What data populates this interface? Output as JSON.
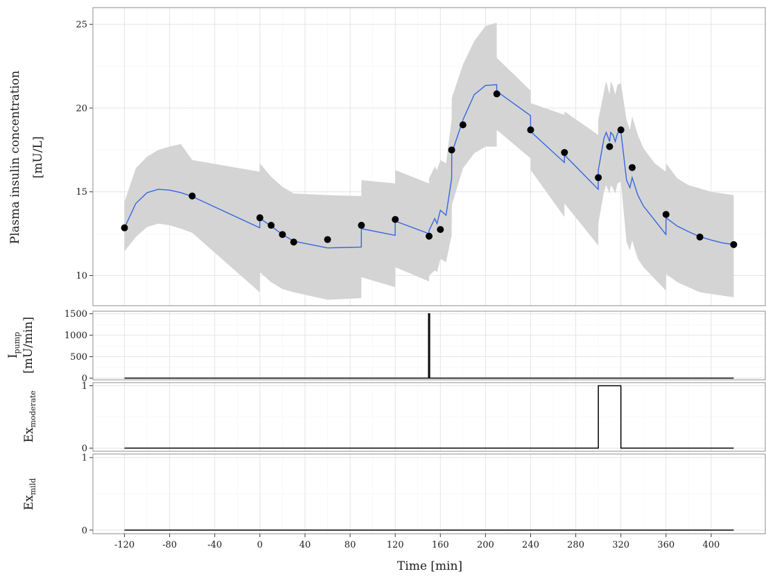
{
  "chart_data": [
    {
      "type": "line",
      "id": "insulin",
      "ylabel_line1": "Plasma insulin concentration",
      "ylabel_line2": "[mU/L]",
      "ylim": [
        8.2,
        26.0
      ],
      "yticks": [
        10,
        15,
        20,
        25
      ],
      "ribbon_color": "#d4d4d4",
      "line_color": "#3366e0",
      "series": [
        {
          "kind": "model-fit",
          "x": [
            -120,
            -110,
            -100,
            -90,
            -80,
            -70,
            -60,
            -0.1,
            0,
            10,
            20,
            30,
            60,
            89.9,
            90,
            119.9,
            120,
            149.9,
            150,
            155,
            157,
            160,
            165,
            170,
            170.1,
            180,
            190,
            200,
            209.9,
            210,
            239.9,
            240,
            269.9,
            270,
            299.9,
            300,
            305,
            307,
            310,
            311,
            313,
            315,
            317,
            320,
            325,
            328,
            330,
            335,
            340,
            350,
            359.9,
            360,
            370,
            380,
            390,
            400,
            410,
            420
          ],
          "values": [
            12.85,
            14.3,
            14.95,
            15.15,
            15.1,
            14.95,
            14.72,
            12.85,
            13.42,
            12.95,
            12.45,
            12.05,
            11.65,
            11.7,
            12.8,
            12.4,
            13.25,
            12.5,
            12.7,
            13.4,
            13.1,
            13.9,
            13.6,
            15.8,
            17.3,
            19.3,
            20.8,
            21.35,
            21.4,
            21.0,
            19.55,
            18.6,
            16.75,
            17.2,
            15.15,
            16.3,
            18.2,
            18.55,
            18.0,
            18.55,
            18.4,
            18.0,
            18.5,
            18.6,
            15.7,
            15.25,
            15.85,
            14.8,
            14.15,
            13.3,
            12.45,
            13.45,
            12.95,
            12.62,
            12.32,
            12.12,
            11.95,
            11.85
          ]
        },
        {
          "kind": "ci-upper",
          "x": [
            -120,
            -110,
            -100,
            -90,
            -80,
            -70,
            -60,
            -0.1,
            0,
            10,
            20,
            30,
            60,
            89.9,
            90,
            119.9,
            120,
            149.9,
            150,
            155,
            157,
            160,
            165,
            170,
            170.1,
            180,
            190,
            200,
            209.9,
            210,
            239.9,
            240,
            269.9,
            270,
            299.9,
            300,
            305,
            307,
            310,
            311,
            313,
            315,
            317,
            320,
            325,
            328,
            330,
            335,
            340,
            350,
            359.9,
            360,
            370,
            380,
            390,
            400,
            410,
            420
          ],
          "values": [
            14.4,
            16.4,
            17.1,
            17.5,
            17.7,
            17.85,
            16.9,
            16.2,
            16.7,
            15.9,
            15.3,
            14.9,
            14.8,
            14.75,
            15.7,
            15.5,
            16.3,
            15.5,
            15.8,
            16.5,
            16.3,
            16.9,
            16.7,
            19.3,
            20.6,
            22.6,
            24.0,
            24.9,
            25.1,
            23.0,
            21.05,
            20.3,
            19.6,
            19.8,
            18.4,
            19.3,
            21.0,
            21.6,
            20.8,
            21.6,
            21.3,
            20.8,
            21.4,
            21.5,
            19.3,
            18.7,
            19.5,
            18.4,
            17.6,
            16.7,
            16.2,
            16.7,
            15.8,
            15.4,
            15.2,
            15.0,
            14.9,
            14.8
          ]
        },
        {
          "kind": "ci-lower",
          "x": [
            -120,
            -110,
            -100,
            -90,
            -80,
            -70,
            -60,
            -0.1,
            0,
            10,
            20,
            30,
            60,
            89.9,
            90,
            119.9,
            120,
            149.9,
            150,
            155,
            157,
            160,
            165,
            170,
            170.1,
            180,
            190,
            200,
            209.9,
            210,
            239.9,
            240,
            269.9,
            270,
            299.9,
            300,
            305,
            307,
            310,
            311,
            313,
            315,
            317,
            320,
            325,
            328,
            330,
            335,
            340,
            350,
            359.9,
            360,
            370,
            380,
            390,
            400,
            410,
            420
          ],
          "values": [
            11.45,
            12.3,
            12.9,
            13.1,
            13.0,
            12.8,
            12.55,
            9.0,
            10.2,
            9.6,
            9.2,
            9.0,
            8.55,
            8.65,
            9.9,
            9.3,
            10.5,
            9.65,
            10.0,
            10.3,
            10.2,
            11.0,
            10.8,
            12.4,
            14.2,
            16.4,
            17.3,
            17.7,
            17.7,
            18.7,
            17.0,
            16.3,
            13.5,
            14.3,
            11.8,
            13.1,
            15.0,
            15.4,
            14.9,
            15.4,
            15.2,
            14.9,
            15.5,
            15.6,
            12.0,
            11.5,
            12.1,
            11.0,
            10.5,
            9.8,
            9.1,
            10.1,
            9.6,
            9.3,
            9.0,
            8.9,
            8.8,
            8.7
          ]
        },
        {
          "kind": "observed",
          "x": [
            -120,
            -60,
            0,
            10,
            20,
            30,
            60,
            90,
            120,
            150,
            160,
            170,
            180,
            210,
            240,
            270,
            300,
            310,
            320,
            330,
            360,
            390,
            420
          ],
          "values": [
            12.85,
            14.75,
            13.45,
            13.0,
            12.45,
            12.0,
            12.15,
            13.0,
            13.35,
            12.35,
            12.75,
            17.5,
            19.0,
            20.85,
            18.7,
            17.35,
            15.85,
            17.7,
            18.7,
            16.45,
            13.65,
            12.3,
            11.85
          ]
        }
      ]
    },
    {
      "type": "line",
      "id": "ipump",
      "ylabel_main": "I",
      "ylabel_sub": "pump",
      "ylabel_line2": "[mU/min]",
      "ylim": [
        -40,
        1560
      ],
      "yticks": [
        0,
        500,
        1000,
        1500
      ],
      "series": [
        {
          "kind": "step",
          "x": [
            -120,
            149.5,
            149.5,
            150.5,
            150.5,
            420
          ],
          "values": [
            0,
            0,
            1500,
            1500,
            0,
            0
          ]
        }
      ]
    },
    {
      "type": "line",
      "id": "exmoderate",
      "ylabel_main": "Ex",
      "ylabel_sub": "moderate",
      "ylim": [
        -0.05,
        1.05
      ],
      "yticks": [
        0,
        1
      ],
      "series": [
        {
          "kind": "step",
          "x": [
            -120,
            300,
            300,
            320,
            320,
            420
          ],
          "values": [
            0,
            0,
            1,
            1,
            0,
            0
          ]
        }
      ]
    },
    {
      "type": "line",
      "id": "exmild",
      "ylabel_main": "Ex",
      "ylabel_sub": "mild",
      "ylim": [
        -0.05,
        1.05
      ],
      "yticks": [
        0,
        1
      ],
      "series": [
        {
          "kind": "step",
          "x": [
            -120,
            420
          ],
          "values": [
            0,
            0
          ]
        }
      ]
    }
  ],
  "x_axis": {
    "label": "Time [min]",
    "xlim": [
      -148,
      448
    ],
    "ticks": [
      -120,
      -80,
      -40,
      0,
      40,
      80,
      120,
      160,
      200,
      240,
      280,
      320,
      360,
      400
    ]
  }
}
